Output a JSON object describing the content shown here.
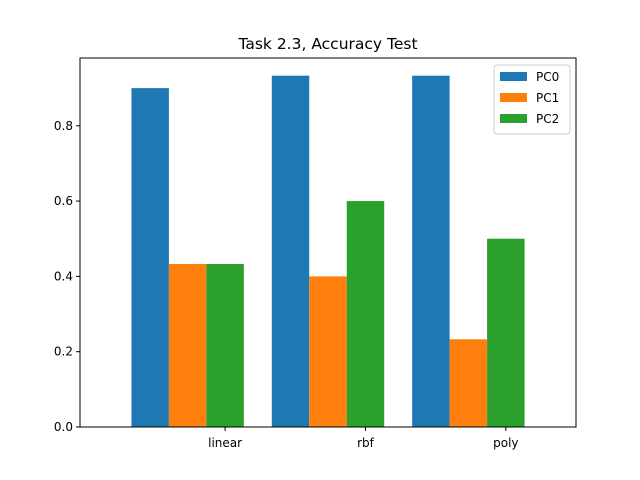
{
  "chart_data": {
    "type": "bar",
    "title": "Task 2.3, Accuracy Test",
    "xlabel": "",
    "ylabel": "",
    "categories": [
      "linear",
      "rbf",
      "poly"
    ],
    "series": [
      {
        "name": "PC0",
        "color": "#1f77b4",
        "values": [
          0.9,
          0.933,
          0.933
        ]
      },
      {
        "name": "PC1",
        "color": "#ff7f0e",
        "values": [
          0.433,
          0.4,
          0.233
        ]
      },
      {
        "name": "PC2",
        "color": "#2ca02c",
        "values": [
          0.433,
          0.6,
          0.5
        ]
      }
    ],
    "ylim": [
      0,
      0.98
    ],
    "yticks": [
      0.0,
      0.2,
      0.4,
      0.6,
      0.8
    ],
    "ytick_labels": [
      "0.0",
      "0.2",
      "0.4",
      "0.6",
      "0.8"
    ],
    "grid": false,
    "legend_position": "top-right"
  }
}
